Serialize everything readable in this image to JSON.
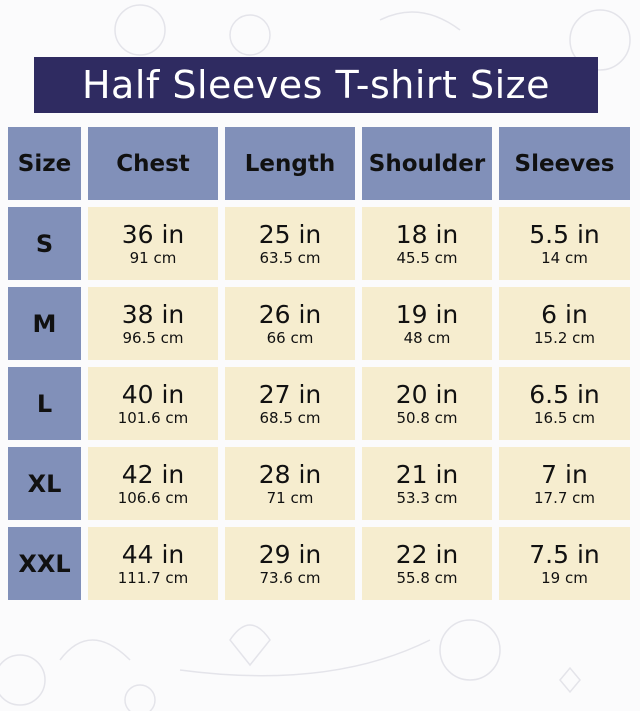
{
  "title": "Half Sleeves T-shirt Size",
  "colors": {
    "title_bg": "#2f2b61",
    "header_bg": "#8190b9",
    "cell_bg": "#f6edcf"
  },
  "headers": [
    "Size",
    "Chest",
    "Length",
    "Shoulder",
    "Sleeves"
  ],
  "rows": [
    {
      "size": "S",
      "values": [
        {
          "in": "36 in",
          "cm": "91 cm"
        },
        {
          "in": "25 in",
          "cm": "63.5 cm"
        },
        {
          "in": "18 in",
          "cm": "45.5 cm"
        },
        {
          "in": "5.5 in",
          "cm": "14 cm"
        }
      ]
    },
    {
      "size": "M",
      "values": [
        {
          "in": "38 in",
          "cm": "96.5 cm"
        },
        {
          "in": "26 in",
          "cm": "66 cm"
        },
        {
          "in": "19 in",
          "cm": "48 cm"
        },
        {
          "in": "6 in",
          "cm": "15.2 cm"
        }
      ]
    },
    {
      "size": "L",
      "values": [
        {
          "in": "40 in",
          "cm": "101.6 cm"
        },
        {
          "in": "27 in",
          "cm": "68.5 cm"
        },
        {
          "in": "20 in",
          "cm": "50.8 cm"
        },
        {
          "in": "6.5 in",
          "cm": "16.5 cm"
        }
      ]
    },
    {
      "size": "XL",
      "values": [
        {
          "in": "42 in",
          "cm": "106.6 cm"
        },
        {
          "in": "28 in",
          "cm": "71 cm"
        },
        {
          "in": "21 in",
          "cm": "53.3 cm"
        },
        {
          "in": "7 in",
          "cm": "17.7 cm"
        }
      ]
    },
    {
      "size": "XXL",
      "values": [
        {
          "in": "44 in",
          "cm": "111.7 cm"
        },
        {
          "in": "29 in",
          "cm": "73.6 cm"
        },
        {
          "in": "22 in",
          "cm": "55.8 cm"
        },
        {
          "in": "7.5 in",
          "cm": "19 cm"
        }
      ]
    }
  ]
}
